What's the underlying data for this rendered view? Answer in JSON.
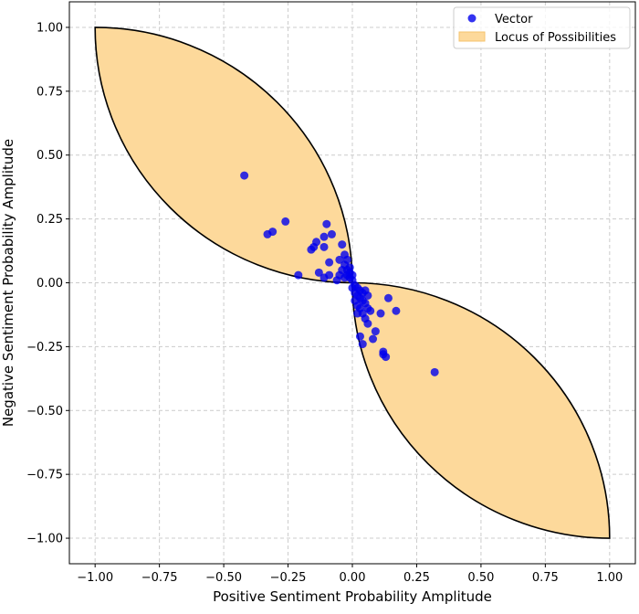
{
  "chart_data": {
    "type": "scatter",
    "title": "",
    "xlabel": "Positive Sentiment Probability Amplitude",
    "ylabel": "Negative Sentiment Probability Amplitude",
    "xlim": [
      -1.1,
      1.1
    ],
    "ylim": [
      -1.1,
      1.1
    ],
    "xticks": [
      -1.0,
      -0.75,
      -0.5,
      -0.25,
      0.0,
      0.25,
      0.5,
      0.75,
      1.0
    ],
    "yticks": [
      -1.0,
      -0.75,
      -0.5,
      -0.25,
      0.0,
      0.25,
      0.5,
      0.75,
      1.0
    ],
    "xtick_labels": [
      "−1.00",
      "−0.75",
      "−0.50",
      "−0.25",
      "0.00",
      "0.25",
      "0.50",
      "0.75",
      "1.00"
    ],
    "ytick_labels": [
      "−1.00",
      "−0.75",
      "−0.50",
      "−0.25",
      "0.00",
      "0.25",
      "0.50",
      "0.75",
      "1.00"
    ],
    "grid": true,
    "legend": {
      "placement": "top-right",
      "entries": [
        "Vector",
        "Locus of Possibilities"
      ]
    },
    "colors": {
      "points": "#0000ee",
      "locus_fill": "#fdd99b",
      "locus_edge": "#000000",
      "grid": "#cccccc"
    },
    "locus": {
      "name": "Locus of Possibilities",
      "shape": "two lens regions bounded by unit-circle arcs",
      "corners": [
        [
          -1,
          1
        ],
        [
          0,
          0
        ],
        [
          1,
          -1
        ]
      ]
    },
    "series": [
      {
        "name": "Vector",
        "points": [
          [
            -0.42,
            0.42
          ],
          [
            -0.33,
            0.19
          ],
          [
            -0.31,
            0.2
          ],
          [
            -0.26,
            0.24
          ],
          [
            -0.21,
            0.03
          ],
          [
            -0.16,
            0.13
          ],
          [
            -0.15,
            0.14
          ],
          [
            -0.14,
            0.16
          ],
          [
            -0.13,
            0.04
          ],
          [
            -0.11,
            0.02
          ],
          [
            -0.11,
            0.14
          ],
          [
            -0.11,
            0.18
          ],
          [
            -0.1,
            0.23
          ],
          [
            -0.09,
            0.08
          ],
          [
            -0.09,
            0.03
          ],
          [
            -0.08,
            0.19
          ],
          [
            -0.06,
            0.01
          ],
          [
            -0.05,
            0.09
          ],
          [
            -0.05,
            0.03
          ],
          [
            -0.04,
            0.15
          ],
          [
            -0.04,
            0.05
          ],
          [
            -0.03,
            0.11
          ],
          [
            -0.03,
            0.07
          ],
          [
            -0.03,
            0.02
          ],
          [
            -0.02,
            0.09
          ],
          [
            -0.02,
            0.05
          ],
          [
            -0.02,
            0.03
          ],
          [
            -0.01,
            0.06
          ],
          [
            -0.01,
            0.04
          ],
          [
            -0.01,
            0.02
          ],
          [
            0.0,
            0.03
          ],
          [
            0.0,
            0.01
          ],
          [
            0.0,
            -0.02
          ],
          [
            0.01,
            -0.01
          ],
          [
            0.01,
            -0.04
          ],
          [
            0.01,
            -0.07
          ],
          [
            0.02,
            -0.02
          ],
          [
            0.02,
            -0.05
          ],
          [
            0.02,
            -0.09
          ],
          [
            0.02,
            -0.12
          ],
          [
            0.03,
            -0.03
          ],
          [
            0.03,
            -0.06
          ],
          [
            0.03,
            -0.1
          ],
          [
            0.03,
            -0.21
          ],
          [
            0.04,
            -0.04
          ],
          [
            0.04,
            -0.07
          ],
          [
            0.04,
            -0.12
          ],
          [
            0.04,
            -0.24
          ],
          [
            0.05,
            -0.03
          ],
          [
            0.05,
            -0.08
          ],
          [
            0.05,
            -0.14
          ],
          [
            0.06,
            -0.05
          ],
          [
            0.06,
            -0.1
          ],
          [
            0.06,
            -0.16
          ],
          [
            0.07,
            -0.11
          ],
          [
            0.08,
            -0.22
          ],
          [
            0.09,
            -0.19
          ],
          [
            0.11,
            -0.12
          ],
          [
            0.12,
            -0.27
          ],
          [
            0.12,
            -0.28
          ],
          [
            0.13,
            -0.29
          ],
          [
            0.14,
            -0.06
          ],
          [
            0.17,
            -0.11
          ],
          [
            0.32,
            -0.35
          ]
        ]
      }
    ]
  }
}
